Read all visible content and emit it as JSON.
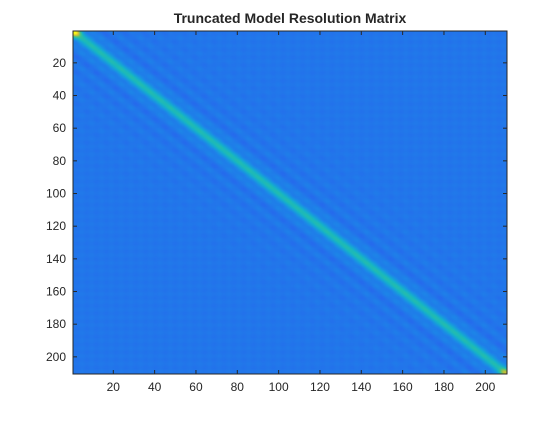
{
  "chart_data": {
    "type": "heatmap",
    "title": "Truncated Model Resolution Matrix",
    "xlabel": "",
    "ylabel": "",
    "size": [
      210,
      210
    ],
    "x_range": [
      0.5,
      210.5
    ],
    "y_range": [
      0.5,
      210.5
    ],
    "y_direction": "reversed",
    "x_ticks": [
      20,
      40,
      60,
      80,
      100,
      120,
      140,
      160,
      180,
      200
    ],
    "y_ticks": [
      20,
      40,
      60,
      80,
      100,
      120,
      140,
      160,
      180,
      200
    ],
    "x_tick_labels": [
      "20",
      "40",
      "60",
      "80",
      "100",
      "120",
      "140",
      "160",
      "180",
      "200"
    ],
    "y_tick_labels": [
      "20",
      "40",
      "60",
      "80",
      "100",
      "120",
      "140",
      "160",
      "180",
      "200"
    ],
    "colormap": "parula",
    "colormap_stops": [
      "#3e26a8",
      "#2f4ff2",
      "#1a8ee6",
      "#14b5c7",
      "#3cc58a",
      "#a8c43a",
      "#f0ba3a",
      "#f9fb15"
    ],
    "background_value": 0.0,
    "diagonal_model": {
      "description": "banded diagonal with oscillating sidelobes (sinc-like kernel)",
      "peak_value": 0.28,
      "band_halfwidth": 3.2,
      "sidelobe_spacing": 9.5,
      "sidelobe_amplitude": 0.045,
      "corner_peaks": [
        {
          "index": 1,
          "value": 0.85
        },
        {
          "index": 2,
          "value": 0.55
        },
        {
          "index": 209,
          "value": 0.45
        },
        {
          "index": 210,
          "value": 0.55
        }
      ]
    },
    "color_limits": [
      -0.08,
      1.0
    ],
    "grid": false
  }
}
